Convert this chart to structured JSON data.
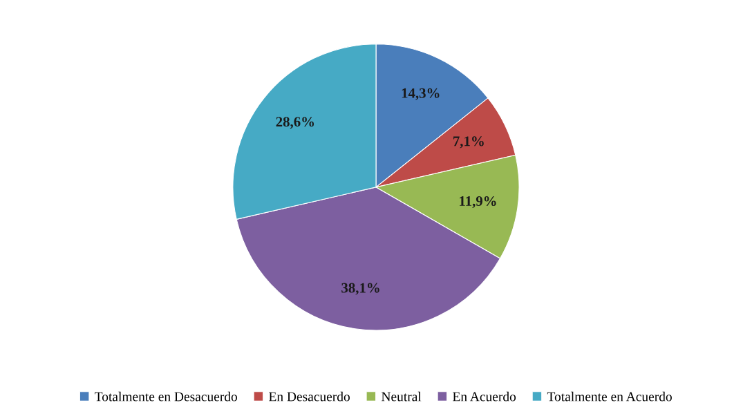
{
  "chart_data": {
    "type": "pie",
    "categories": [
      "Totalmente en Desacuerdo",
      "En Desacuerdo",
      "Neutral",
      "En Acuerdo",
      "Totalmente en Acuerdo"
    ],
    "values": [
      14.3,
      7.1,
      11.9,
      38.1,
      28.6
    ],
    "value_labels": [
      "14,3%",
      "7,1%",
      "11,9%",
      "38,1%",
      "28,6%"
    ],
    "colors": [
      "#4a7ebb",
      "#be4b48",
      "#98b954",
      "#7d5fa0",
      "#46aac5"
    ],
    "legend": "bottom"
  }
}
